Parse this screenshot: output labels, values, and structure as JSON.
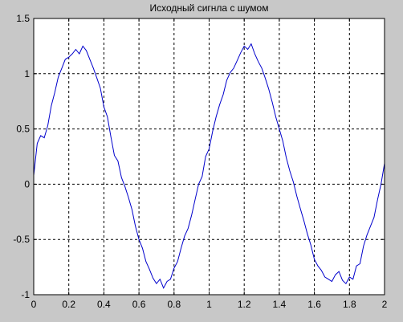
{
  "chart_data": {
    "type": "line",
    "title": "Исходный сигнла с шумом",
    "xlabel": "",
    "ylabel": "",
    "xlim": [
      0,
      2
    ],
    "ylim": [
      -1,
      1.5
    ],
    "xticks": [
      "0",
      "0.2",
      "0.4",
      "0.6",
      "0.8",
      "1",
      "1.2",
      "1.4",
      "1.6",
      "1.8",
      "2"
    ],
    "yticks": [
      "-1",
      "-0.5",
      "0",
      "0.5",
      "1",
      "1.5"
    ],
    "grid": true,
    "grid_style": "dashed",
    "line_color": "#0000cc",
    "series": [
      {
        "x": [
          0.0,
          0.02,
          0.04,
          0.06,
          0.08,
          0.1,
          0.12,
          0.14,
          0.16,
          0.18,
          0.2,
          0.22,
          0.24,
          0.26,
          0.28,
          0.3,
          0.32,
          0.34,
          0.36,
          0.38,
          0.4,
          0.42,
          0.44,
          0.46,
          0.48,
          0.5,
          0.52,
          0.54,
          0.56,
          0.58,
          0.6,
          0.62,
          0.64,
          0.66,
          0.68,
          0.7,
          0.72,
          0.74,
          0.76,
          0.78,
          0.8,
          0.82,
          0.84,
          0.86,
          0.88,
          0.9,
          0.92,
          0.94,
          0.96,
          0.98,
          1.0,
          1.02,
          1.04,
          1.06,
          1.08,
          1.1,
          1.12,
          1.14,
          1.16,
          1.18,
          1.2,
          1.22,
          1.24,
          1.26,
          1.28,
          1.3,
          1.32,
          1.34,
          1.36,
          1.38,
          1.4,
          1.42,
          1.44,
          1.46,
          1.48,
          1.5,
          1.52,
          1.54,
          1.56,
          1.58,
          1.6,
          1.62,
          1.64,
          1.66,
          1.68,
          1.7,
          1.72,
          1.74,
          1.76,
          1.78,
          1.8,
          1.82,
          1.84,
          1.86,
          1.88,
          1.9,
          1.92,
          1.94,
          1.96,
          1.98,
          2.0
        ],
        "y": [
          0.08,
          0.37,
          0.44,
          0.42,
          0.53,
          0.71,
          0.83,
          0.97,
          1.05,
          1.13,
          1.15,
          1.18,
          1.22,
          1.18,
          1.25,
          1.21,
          1.13,
          1.05,
          0.96,
          0.87,
          0.7,
          0.61,
          0.43,
          0.26,
          0.21,
          0.06,
          -0.02,
          -0.12,
          -0.23,
          -0.38,
          -0.5,
          -0.58,
          -0.7,
          -0.77,
          -0.85,
          -0.9,
          -0.86,
          -0.94,
          -0.88,
          -0.86,
          -0.76,
          -0.7,
          -0.58,
          -0.47,
          -0.4,
          -0.28,
          -0.14,
          0.0,
          0.07,
          0.25,
          0.32,
          0.48,
          0.61,
          0.72,
          0.81,
          0.94,
          1.01,
          1.05,
          1.12,
          1.19,
          1.25,
          1.22,
          1.27,
          1.18,
          1.11,
          1.05,
          0.96,
          0.86,
          0.74,
          0.61,
          0.5,
          0.39,
          0.24,
          0.12,
          0.02,
          -0.11,
          -0.22,
          -0.33,
          -0.45,
          -0.55,
          -0.68,
          -0.74,
          -0.78,
          -0.84,
          -0.86,
          -0.88,
          -0.82,
          -0.79,
          -0.87,
          -0.9,
          -0.84,
          -0.86,
          -0.74,
          -0.72,
          -0.56,
          -0.46,
          -0.38,
          -0.3,
          -0.14,
          0.0,
          0.19
        ]
      }
    ]
  }
}
